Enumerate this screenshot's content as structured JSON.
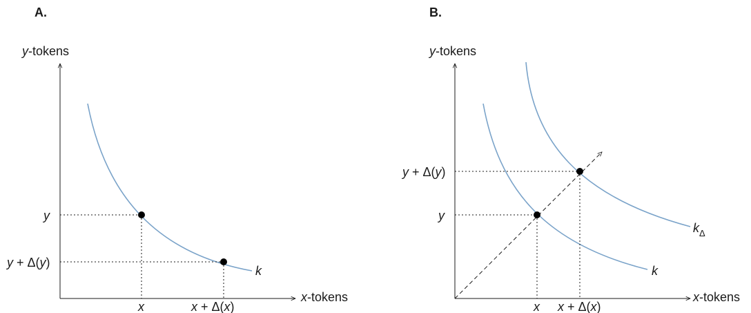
{
  "panels": [
    {
      "title": "A.",
      "y_axis": {
        "var": "y",
        "suffix": "-tokens"
      },
      "x_axis": {
        "var": "x",
        "suffix": "-tokens"
      },
      "y_ticks": [
        {
          "parts": [
            "y"
          ]
        },
        {
          "parts": [
            "y",
            " + Δ(",
            "y",
            ")"
          ]
        }
      ],
      "x_ticks": [
        {
          "parts": [
            "x"
          ]
        },
        {
          "parts": [
            "x",
            " + Δ(",
            "x",
            ")"
          ]
        }
      ],
      "curves": [
        {
          "label": "k"
        }
      ]
    },
    {
      "title": "B.",
      "y_axis": {
        "var": "y",
        "suffix": "-tokens"
      },
      "x_axis": {
        "var": "x",
        "suffix": "-tokens"
      },
      "y_ticks": [
        {
          "parts": [
            "y + Δ(",
            "y",
            ")"
          ]
        },
        {
          "parts": [
            "y"
          ]
        }
      ],
      "x_ticks": [
        {
          "parts": [
            "x"
          ]
        },
        {
          "parts": [
            "x",
            " + Δ(",
            "x",
            ")"
          ]
        }
      ],
      "curves": [
        {
          "label": "k"
        },
        {
          "label": "k",
          "subscript": "Δ"
        }
      ]
    }
  ],
  "colors": {
    "curve": "#7aa3c9",
    "axis": "#1a1a1a",
    "point": "#000000"
  }
}
